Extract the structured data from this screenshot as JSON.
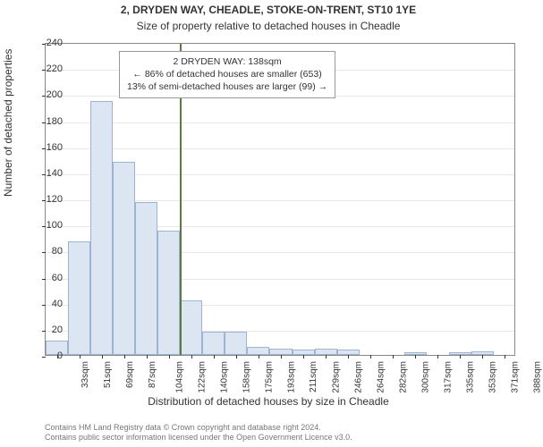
{
  "title_line1": "2, DRYDEN WAY, CHEADLE, STOKE-ON-TRENT, ST10 1YE",
  "title_line2": "Size of property relative to detached houses in Cheadle",
  "ylabel": "Number of detached properties",
  "xlabel": "Distribution of detached houses by size in Cheadle",
  "footer_line1": "Contains HM Land Registry data © Crown copyright and database right 2024.",
  "footer_line2": "Contains public sector information licensed under the Open Government Licence v3.0.",
  "info_box": {
    "line1": "2 DRYDEN WAY: 138sqm",
    "line2": "← 86% of detached houses are smaller (653)",
    "line3": "13% of semi-detached houses are larger (99) →"
  },
  "chart": {
    "type": "histogram",
    "ylim": [
      0,
      240
    ],
    "ytick_step": 20,
    "x_categories": [
      "33sqm",
      "51sqm",
      "69sqm",
      "87sqm",
      "104sqm",
      "122sqm",
      "140sqm",
      "158sqm",
      "175sqm",
      "193sqm",
      "211sqm",
      "229sqm",
      "246sqm",
      "264sqm",
      "282sqm",
      "300sqm",
      "317sqm",
      "335sqm",
      "353sqm",
      "371sqm",
      "388sqm"
    ],
    "bar_values": [
      11,
      87,
      195,
      148,
      117,
      95,
      42,
      18,
      18,
      6,
      5,
      4,
      5,
      4,
      0,
      0,
      2,
      0,
      2,
      3,
      0
    ],
    "bar_color": "#dce6f2",
    "bar_border_color": "#9db4d0",
    "grid_color": "#e8e8e8",
    "background_color": "#ffffff",
    "ref_line_index": 6,
    "ref_line_color": "#5b7a3e",
    "title_fontsize": 12,
    "label_fontsize": 12,
    "tick_fontsize": 10,
    "info_fontsize": 10.5,
    "footer_fontsize": 9
  }
}
